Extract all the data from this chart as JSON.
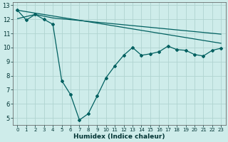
{
  "xlabel": "Humidex (Indice chaleur)",
  "bg_color": "#ceecea",
  "grid_color": "#b0d4d0",
  "line_color": "#006060",
  "xlim": [
    -0.5,
    23.5
  ],
  "ylim": [
    4.5,
    13.2
  ],
  "yticks": [
    5,
    6,
    7,
    8,
    9,
    10,
    11,
    12,
    13
  ],
  "xticks": [
    0,
    1,
    2,
    3,
    4,
    5,
    6,
    7,
    8,
    9,
    10,
    11,
    12,
    13,
    14,
    15,
    16,
    17,
    18,
    19,
    20,
    21,
    22,
    23
  ],
  "line1_x": [
    0,
    23
  ],
  "line1_y": [
    12.65,
    10.3
  ],
  "line2_x": [
    0,
    2,
    4,
    23
  ],
  "line2_y": [
    12.05,
    12.35,
    12.1,
    10.95
  ],
  "curve_x": [
    0,
    1,
    2,
    3,
    4,
    5,
    6,
    7,
    8,
    9,
    10,
    11,
    12,
    13,
    14,
    15,
    16,
    17,
    18,
    19,
    20,
    21,
    22,
    23
  ],
  "curve_y": [
    12.65,
    11.95,
    12.35,
    12.0,
    11.65,
    7.65,
    6.65,
    4.85,
    5.3,
    6.55,
    7.85,
    8.7,
    9.45,
    10.0,
    9.45,
    9.55,
    9.7,
    10.1,
    9.85,
    9.8,
    9.5,
    9.4,
    9.8,
    9.95
  ]
}
